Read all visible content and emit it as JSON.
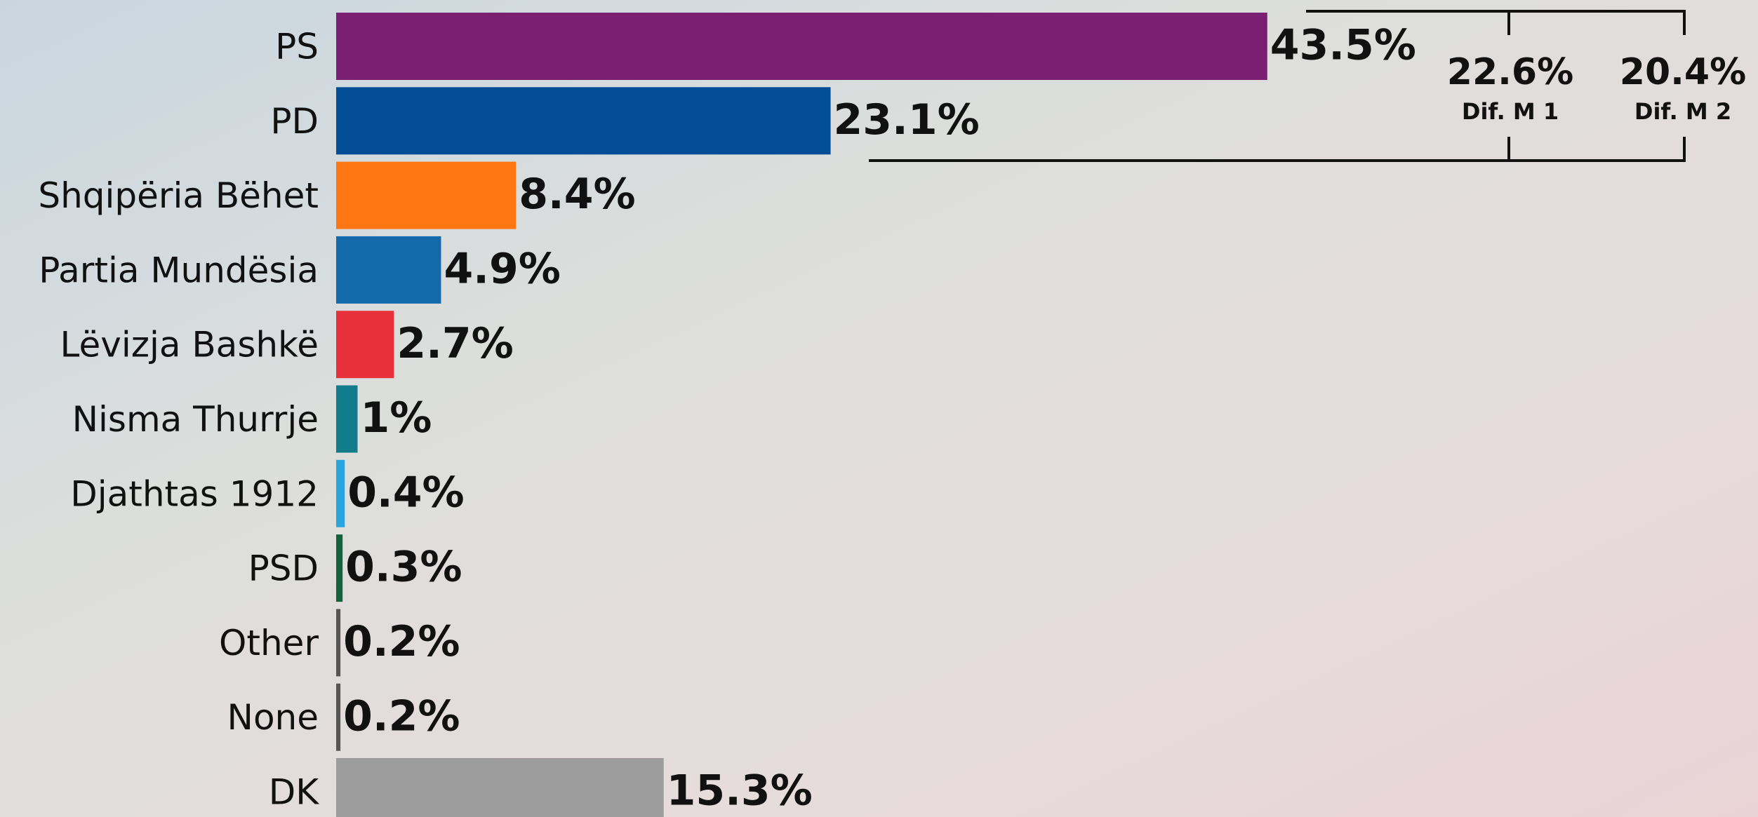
{
  "chart_data": {
    "type": "barh",
    "categories": [
      "PS",
      "PD",
      "Shqipëria Bëhet",
      "Partia Mundësia",
      "Lëvizja Bashkë",
      "Nisma Thurrje",
      "Djathtas 1912",
      "PSD",
      "Other",
      "None",
      "DK"
    ],
    "series": [
      {
        "colors": [
          "#7a1f72",
          "#034d96",
          "#fd7611",
          "#1469ab",
          "#e8303a",
          "#107b8a",
          "#2aa4dd",
          "#11623a",
          "#555555",
          "#555555",
          "#9c9c9c"
        ],
        "values": [
          43.5,
          23.1,
          8.4,
          4.9,
          2.7,
          1,
          0.4,
          0.3,
          0.2,
          0.2,
          15.3
        ],
        "value_labels": [
          "43.5%",
          "23.1%",
          "8.4%",
          "4.9%",
          "2.7%",
          "1%",
          "0.4%",
          "0.3%",
          "0.2%",
          "0.2%",
          "15.3%"
        ]
      }
    ],
    "annotations": [
      {
        "text": "22.6%",
        "label": "Dif. M 1"
      },
      {
        "text": "20.4%",
        "label": "Dif. M 2"
      }
    ]
  }
}
